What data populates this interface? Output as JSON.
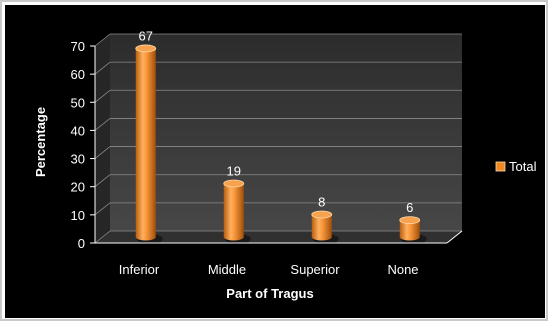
{
  "chart_data": {
    "type": "bar",
    "style": "3d-cylinder",
    "title": "",
    "xlabel": "Part of Tragus",
    "ylabel": "Percentage",
    "categories": [
      "Inferior",
      "Middle",
      "Superior",
      "None"
    ],
    "series": [
      {
        "name": "Total",
        "values": [
          67,
          19,
          8,
          6
        ]
      }
    ],
    "data_labels": [
      "67",
      "19",
      "8",
      "6"
    ],
    "ylim": [
      0,
      70
    ],
    "yticks": [
      0,
      10,
      20,
      30,
      40,
      50,
      60,
      70
    ],
    "grid": true,
    "legend_position": "right",
    "colors": {
      "background": "#000000",
      "bar": "#f08a24",
      "bar_highlight": "#ffd9a8",
      "bar_shadow": "#a04e0a",
      "wall": "#3a3a3a",
      "gridline": "#8a8a8a",
      "text": "#ffffff"
    }
  }
}
